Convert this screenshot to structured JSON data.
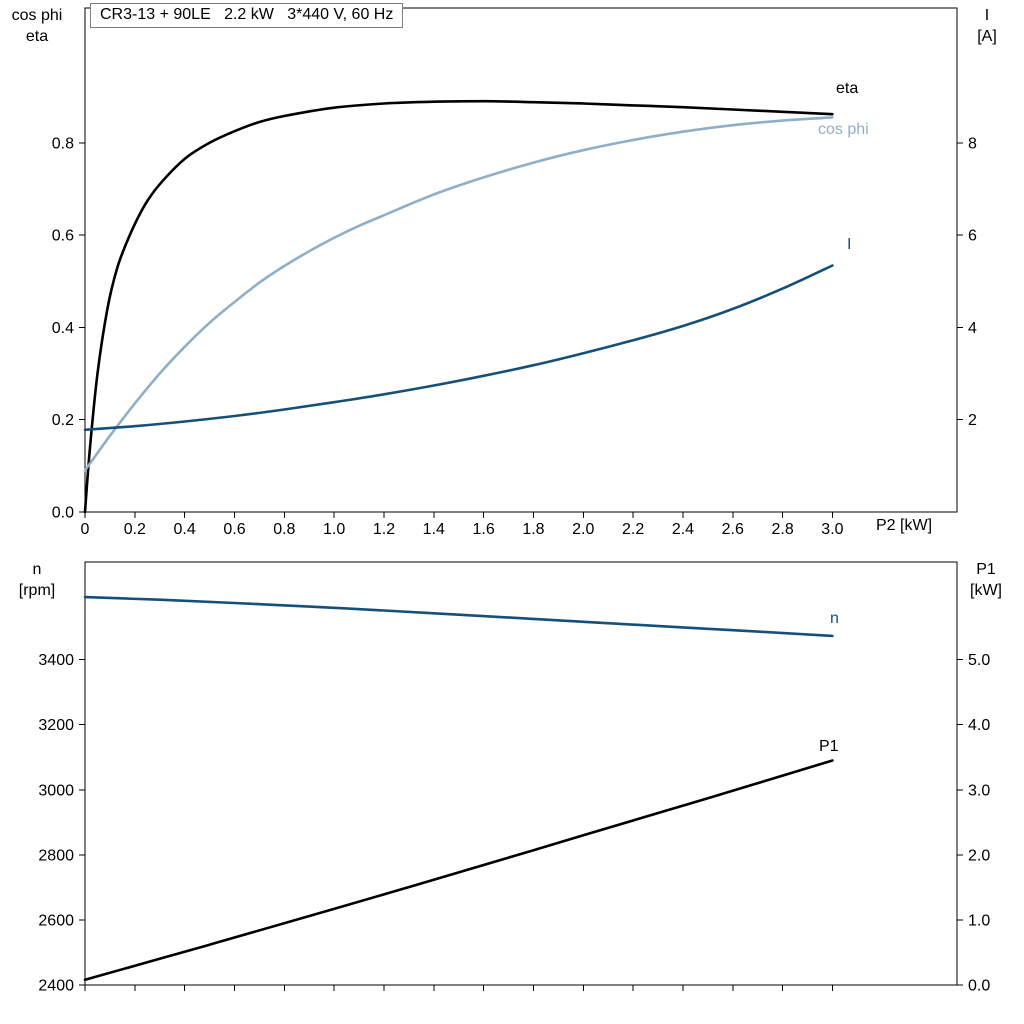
{
  "title": "CR3-13 + 90LE   2.2 kW   3*440 V, 60 Hz",
  "chart_data": [
    {
      "name": "top-chart",
      "type": "line",
      "x_label": "P2 [kW]",
      "x_min": 0,
      "x_max": 3.5,
      "grid": false,
      "x_tick_values": [
        0,
        0.2,
        0.4,
        0.6,
        0.8,
        1.0,
        1.2,
        1.4,
        1.6,
        1.8,
        2.0,
        2.2,
        2.4,
        2.6,
        2.8,
        3.0
      ],
      "x_tick_labels": [
        "0",
        "0.2",
        "0.4",
        "0.6",
        "0.8",
        "1.0",
        "1.2",
        "1.4",
        "1.6",
        "1.8",
        "2.0",
        "2.2",
        "2.4",
        "2.6",
        "2.8",
        "3.0"
      ],
      "left_axis": {
        "title_lines": [
          "cos phi",
          "eta"
        ],
        "min": 0,
        "max": 1.092,
        "tick_values": [
          0,
          0.2,
          0.4,
          0.6,
          0.8
        ],
        "tick_labels": [
          "0.0",
          "0.2",
          "0.4",
          "0.6",
          "0.8"
        ]
      },
      "right_axis": {
        "title_lines": [
          "I",
          "[A]"
        ],
        "min": 0,
        "max": 10.92,
        "tick_values": [
          2,
          4,
          6,
          8
        ],
        "tick_labels": [
          "2",
          "4",
          "6",
          "8"
        ]
      },
      "series": [
        {
          "name": "eta",
          "curve_label": "eta",
          "axis": "left",
          "color": "#000000",
          "x": [
            0,
            0.02,
            0.05,
            0.09,
            0.13,
            0.18,
            0.24,
            0.3,
            0.4,
            0.5,
            0.6,
            0.7,
            0.8,
            1.0,
            1.2,
            1.4,
            1.6,
            1.8,
            2.0,
            2.2,
            2.4,
            2.6,
            2.8,
            3.0
          ],
          "y": [
            0,
            0.14,
            0.3,
            0.44,
            0.53,
            0.6,
            0.665,
            0.71,
            0.765,
            0.8,
            0.825,
            0.845,
            0.858,
            0.876,
            0.885,
            0.889,
            0.89,
            0.888,
            0.885,
            0.881,
            0.877,
            0.872,
            0.867,
            0.862
          ]
        },
        {
          "name": "cos-phi",
          "curve_label": "cos phi",
          "axis": "left",
          "color": "#8fafc9",
          "x": [
            0,
            0.1,
            0.2,
            0.3,
            0.4,
            0.5,
            0.6,
            0.7,
            0.8,
            0.9,
            1.0,
            1.1,
            1.2,
            1.4,
            1.6,
            1.8,
            2.0,
            2.2,
            2.4,
            2.6,
            2.8,
            3.0
          ],
          "y": [
            0.09,
            0.165,
            0.235,
            0.3,
            0.358,
            0.41,
            0.455,
            0.497,
            0.533,
            0.565,
            0.594,
            0.62,
            0.643,
            0.688,
            0.725,
            0.757,
            0.784,
            0.806,
            0.824,
            0.838,
            0.848,
            0.855
          ]
        },
        {
          "name": "current",
          "curve_label": "I",
          "axis": "right",
          "color": "#155079",
          "x": [
            0,
            0.2,
            0.4,
            0.6,
            0.8,
            1.0,
            1.2,
            1.4,
            1.6,
            1.8,
            2.0,
            2.2,
            2.4,
            2.6,
            2.8,
            3.0
          ],
          "y": [
            1.78,
            1.86,
            1.96,
            2.08,
            2.22,
            2.38,
            2.55,
            2.74,
            2.95,
            3.18,
            3.44,
            3.72,
            4.03,
            4.4,
            4.84,
            5.34
          ]
        }
      ]
    },
    {
      "name": "bottom-chart",
      "type": "line",
      "x_label": "",
      "x_min": 0,
      "x_max": 3.5,
      "grid": false,
      "x_tick_values": [
        0,
        0.2,
        0.4,
        0.6,
        0.8,
        1.0,
        1.2,
        1.4,
        1.6,
        1.8,
        2.0,
        2.2,
        2.4,
        2.6,
        2.8,
        3.0
      ],
      "x_tick_labels": [],
      "left_axis": {
        "title_lines": [
          "n",
          "[rpm]"
        ],
        "min": 2400,
        "max": 3700,
        "tick_values": [
          2400,
          2600,
          2800,
          3000,
          3200,
          3400
        ],
        "tick_labels": [
          "2400",
          "2600",
          "2800",
          "3000",
          "3200",
          "3400"
        ]
      },
      "right_axis": {
        "title_lines": [
          "P1",
          "[kW]"
        ],
        "min": 0,
        "max": 6.5,
        "tick_values": [
          0,
          1,
          2,
          3,
          4,
          5
        ],
        "tick_labels": [
          "0.0",
          "1.0",
          "2.0",
          "3.0",
          "4.0",
          "5.0"
        ]
      },
      "series": [
        {
          "name": "speed",
          "curve_label": "n",
          "axis": "left",
          "color": "#155079",
          "x": [
            0,
            0.3,
            0.6,
            0.9,
            1.2,
            1.5,
            1.8,
            2.1,
            2.4,
            2.7,
            3.0
          ],
          "y": [
            3592,
            3584,
            3574,
            3563,
            3551,
            3538,
            3525,
            3512,
            3499,
            3486,
            3473
          ]
        },
        {
          "name": "p1",
          "curve_label": "P1",
          "axis": "right",
          "color": "#000000",
          "x": [
            0,
            0.5,
            1.0,
            1.5,
            2.0,
            2.5,
            3.0
          ],
          "y": [
            0.08,
            0.62,
            1.17,
            1.73,
            2.3,
            2.87,
            3.45
          ]
        }
      ]
    }
  ]
}
